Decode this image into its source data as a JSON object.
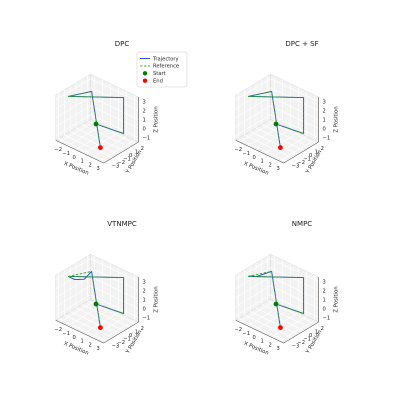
{
  "chart_data": [
    {
      "type": "line",
      "projection": "3d",
      "title": "DPC",
      "xlabel": "X Position",
      "ylabel": "Y Position",
      "zlabel": "Z Position",
      "xticks": [
        "−2",
        "−1",
        "0",
        "1",
        "2",
        "3"
      ],
      "yticks": [
        "−3",
        "−2",
        "−1",
        "0",
        "1",
        "2"
      ],
      "zticks": [
        "−1",
        "0",
        "1",
        "2",
        "3"
      ],
      "xlim": [
        -2.5,
        3.5
      ],
      "ylim": [
        -3.5,
        2.5
      ],
      "zlim": [
        -1.5,
        3.5
      ],
      "grid": true,
      "legend_position": "upper-right",
      "series": [
        {
          "name": "Trajectory",
          "color": "#1f3fd6",
          "style": "solid",
          "points": [
            [
              0,
              0,
              0
            ],
            [
              2,
              2,
              -1
            ],
            [
              2,
              2,
              3
            ],
            [
              -2,
              -2,
              3
            ],
            [
              -2,
              2,
              2
            ],
            [
              2,
              -2,
              -1
            ]
          ]
        },
        {
          "name": "Reference",
          "color": "#2ca02c",
          "style": "dashed",
          "points": [
            [
              0,
              0,
              0
            ],
            [
              2,
              2,
              -1
            ],
            [
              2,
              2,
              3
            ],
            [
              -2,
              -2,
              3
            ],
            [
              -2,
              2,
              2
            ],
            [
              2,
              -2,
              -1
            ]
          ]
        }
      ],
      "markers": [
        {
          "name": "Start",
          "color": "#008000",
          "point": [
            0,
            0,
            0
          ]
        },
        {
          "name": "End",
          "color": "#ff0000",
          "point": [
            2,
            -2,
            -1
          ]
        }
      ]
    },
    {
      "type": "line",
      "projection": "3d",
      "title": "DPC + SF",
      "xlabel": "X Position",
      "ylabel": "Y Position",
      "zlabel": "Z Position",
      "xticks": [
        "−2",
        "−1",
        "0",
        "1",
        "2",
        "3"
      ],
      "yticks": [
        "−3",
        "−2",
        "−1",
        "0",
        "1",
        "2"
      ],
      "zticks": [
        "−1",
        "0",
        "1",
        "2",
        "3"
      ],
      "xlim": [
        -2.5,
        3.5
      ],
      "ylim": [
        -3.5,
        2.5
      ],
      "zlim": [
        -1.5,
        3.5
      ],
      "grid": true,
      "series": [
        {
          "name": "Trajectory",
          "color": "#1f3fd6",
          "style": "solid",
          "points": [
            [
              0,
              0,
              0
            ],
            [
              2,
              2,
              -1
            ],
            [
              2,
              2,
              3
            ],
            [
              -2,
              -2,
              3
            ],
            [
              -2,
              2,
              2
            ],
            [
              2,
              -2,
              -1
            ]
          ]
        },
        {
          "name": "Reference",
          "color": "#2ca02c",
          "style": "dashed",
          "points": [
            [
              0,
              0,
              0
            ],
            [
              2,
              2,
              -1
            ],
            [
              2,
              2,
              3
            ],
            [
              -2,
              -2,
              3
            ],
            [
              -2,
              2,
              2
            ],
            [
              2,
              -2,
              -1
            ]
          ]
        }
      ],
      "markers": [
        {
          "name": "Start",
          "color": "#008000",
          "point": [
            0,
            0,
            0
          ]
        },
        {
          "name": "End",
          "color": "#ff0000",
          "point": [
            2,
            -2,
            -1
          ]
        }
      ]
    },
    {
      "type": "line",
      "projection": "3d",
      "title": "VTNMPC",
      "xlabel": "X Position",
      "ylabel": "Y Position",
      "zlabel": "Z Position",
      "xticks": [
        "−2",
        "−1",
        "0",
        "1",
        "2",
        "3"
      ],
      "yticks": [
        "−3",
        "−2",
        "−1",
        "0",
        "1",
        "2"
      ],
      "zticks": [
        "−1",
        "0",
        "1",
        "2",
        "3"
      ],
      "xlim": [
        -2.5,
        3.5
      ],
      "ylim": [
        -3.5,
        2.5
      ],
      "zlim": [
        -1.5,
        3.5
      ],
      "grid": true,
      "series": [
        {
          "name": "Trajectory",
          "color": "#1f3fd6",
          "style": "solid",
          "points": [
            [
              0,
              0,
              0
            ],
            [
              2,
              2,
              -1
            ],
            [
              2,
              2,
              3
            ],
            [
              -2,
              -2,
              3
            ],
            [
              -2,
              -1.6,
              2.7
            ],
            [
              -1.9,
              -1.0,
              2.3
            ],
            [
              -1.6,
              0.2,
              2.0
            ],
            [
              -2,
              2,
              2
            ],
            [
              2,
              -2,
              -1
            ]
          ]
        },
        {
          "name": "Reference",
          "color": "#2ca02c",
          "style": "dashed",
          "points": [
            [
              0,
              0,
              0
            ],
            [
              2,
              2,
              -1
            ],
            [
              2,
              2,
              3
            ],
            [
              -2,
              -2,
              3
            ],
            [
              -2,
              2,
              2
            ],
            [
              2,
              -2,
              -1
            ]
          ]
        }
      ],
      "markers": [
        {
          "name": "Start",
          "color": "#008000",
          "point": [
            0,
            0,
            0
          ]
        },
        {
          "name": "End",
          "color": "#ff0000",
          "point": [
            2,
            -2,
            -1
          ]
        }
      ]
    },
    {
      "type": "line",
      "projection": "3d",
      "title": "NMPC",
      "xlabel": "X Position",
      "ylabel": "Y Position",
      "zlabel": "Z Position",
      "xticks": [
        "−2",
        "−1",
        "0",
        "1",
        "2",
        "3"
      ],
      "yticks": [
        "−3",
        "−2",
        "−1",
        "0",
        "1",
        "2"
      ],
      "zticks": [
        "−1",
        "0",
        "1",
        "2",
        "3"
      ],
      "xlim": [
        -2.5,
        3.5
      ],
      "ylim": [
        -3.5,
        2.5
      ],
      "zlim": [
        -1.5,
        3.5
      ],
      "grid": true,
      "series": [
        {
          "name": "Trajectory",
          "color": "#1f3fd6",
          "style": "solid",
          "points": [
            [
              0,
              0,
              0
            ],
            [
              2,
              2,
              -1
            ],
            [
              2,
              2,
              3
            ],
            [
              -2,
              -2,
              3
            ],
            [
              -2,
              -1.5,
              2.85
            ],
            [
              -1.9,
              -0.8,
              2.55
            ],
            [
              -2,
              2,
              2
            ],
            [
              2,
              -2,
              -1
            ]
          ]
        },
        {
          "name": "Reference",
          "color": "#2ca02c",
          "style": "dashed",
          "points": [
            [
              0,
              0,
              0
            ],
            [
              2,
              2,
              -1
            ],
            [
              2,
              2,
              3
            ],
            [
              -2,
              -2,
              3
            ],
            [
              -2,
              2,
              2
            ],
            [
              2,
              -2,
              -1
            ]
          ]
        }
      ],
      "markers": [
        {
          "name": "Start",
          "color": "#008000",
          "point": [
            0,
            0,
            0
          ]
        },
        {
          "name": "End",
          "color": "#ff0000",
          "point": [
            2,
            -2,
            -1
          ]
        }
      ]
    }
  ]
}
